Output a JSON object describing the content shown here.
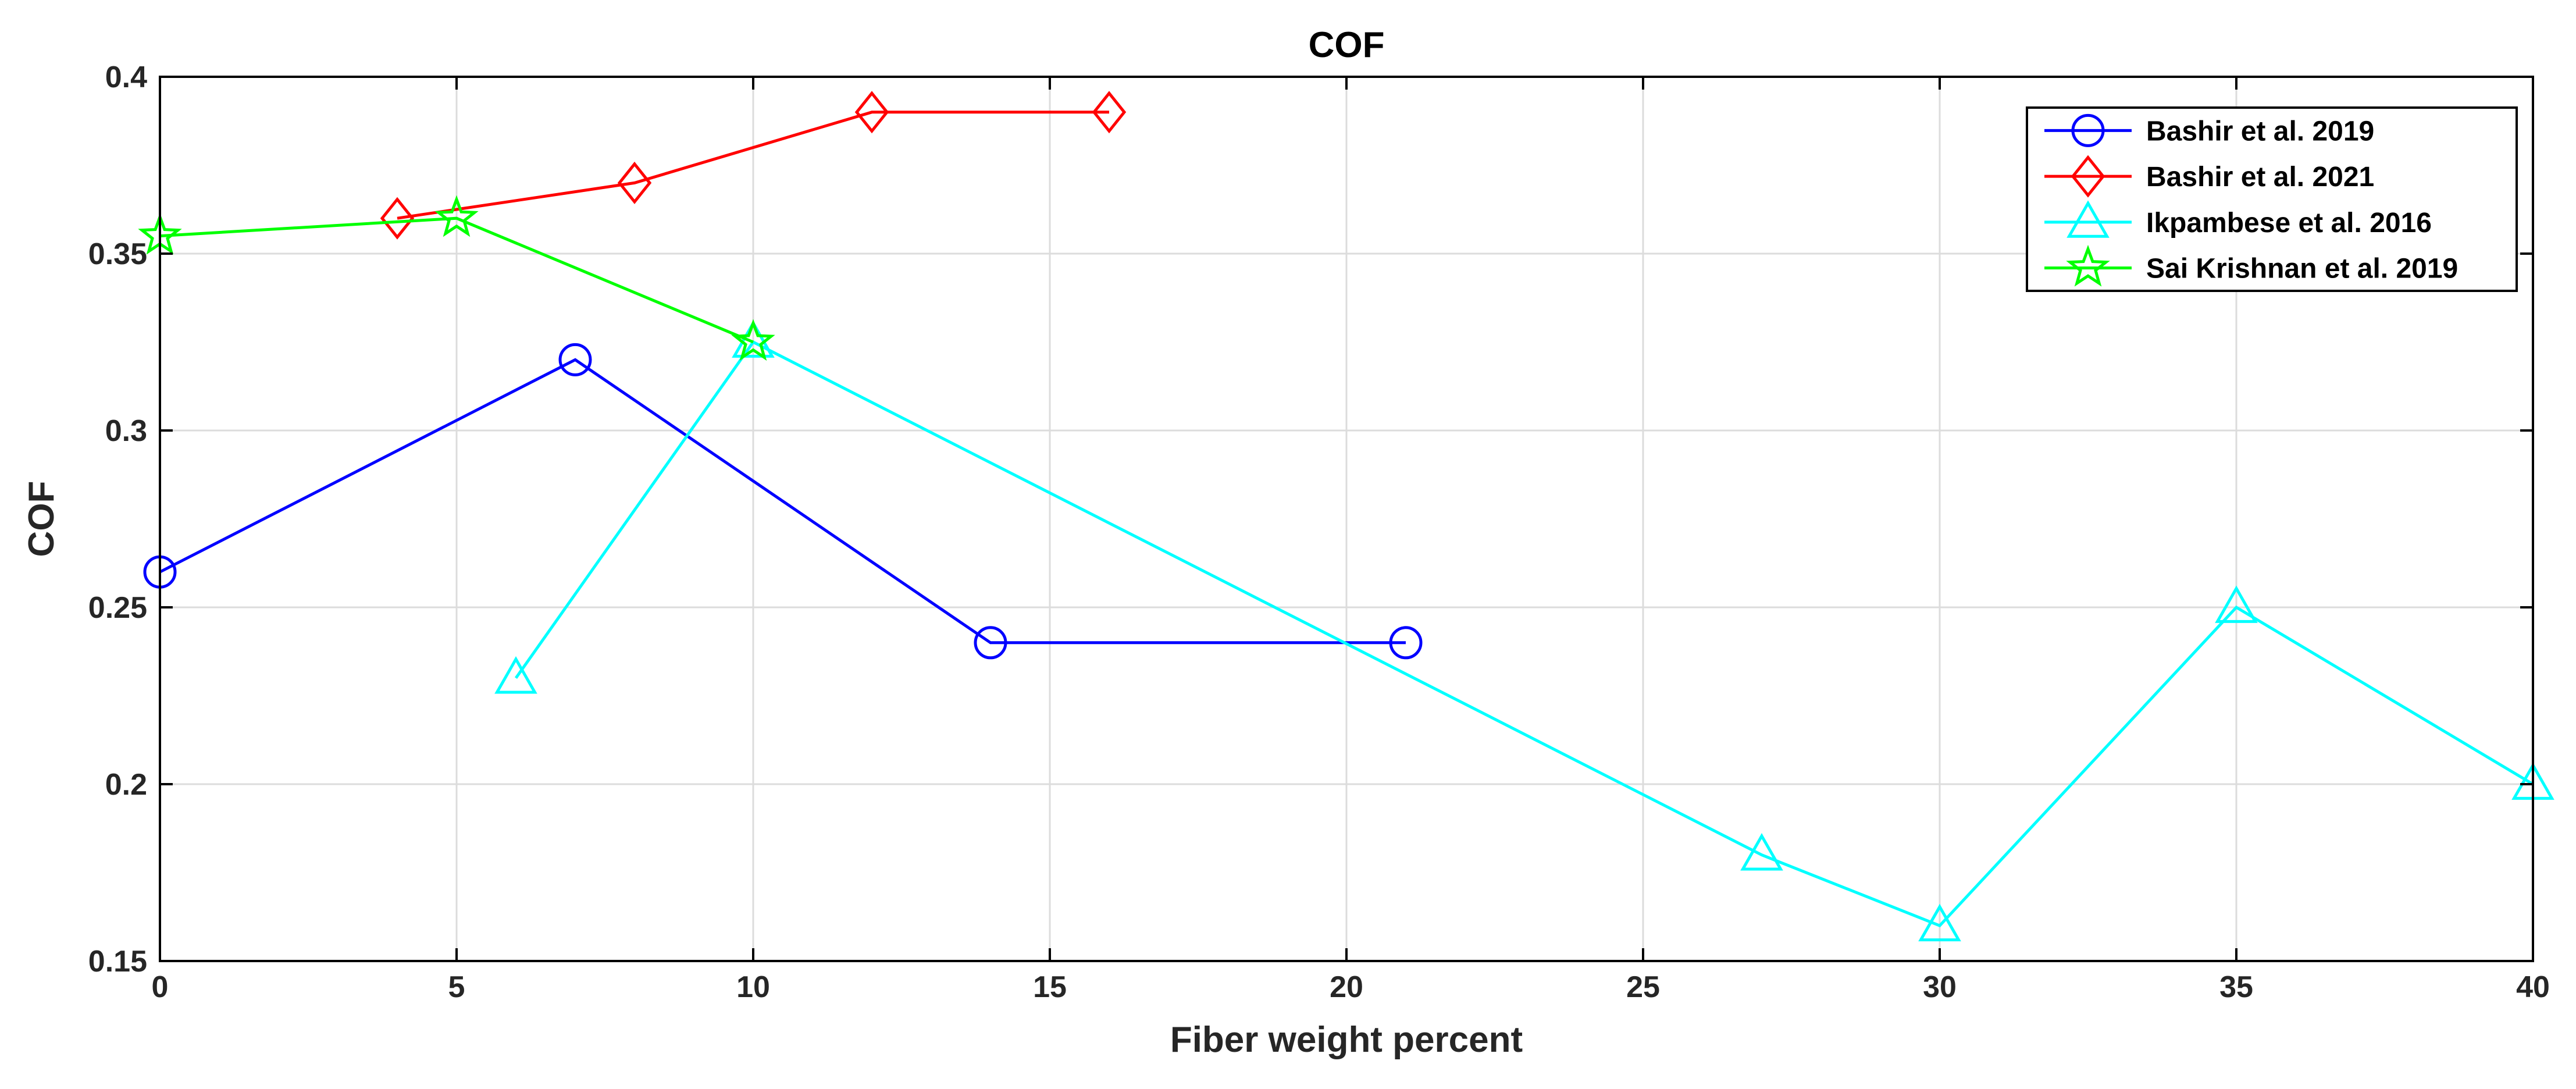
{
  "chart_data": {
    "type": "line",
    "title": "COF",
    "xlabel": "Fiber weight percent",
    "ylabel": "COF",
    "xlim": [
      0,
      40
    ],
    "ylim": [
      0.15,
      0.4
    ],
    "grid": true,
    "legend_position": "top-right",
    "x_ticks": [
      "0",
      "5",
      "10",
      "15",
      "20",
      "25",
      "30",
      "35",
      "40"
    ],
    "y_ticks": [
      "0.15",
      "0.2",
      "0.25",
      "0.3",
      "0.35",
      "0.4"
    ],
    "series": [
      {
        "name": "Bashir et al. 2019",
        "color": "#0000ff",
        "marker": "circle",
        "x": [
          0,
          7,
          14,
          21
        ],
        "y": [
          0.26,
          0.32,
          0.24,
          0.24
        ]
      },
      {
        "name": "Bashir et al. 2021",
        "color": "#ff0000",
        "marker": "diamond",
        "x": [
          4,
          8,
          12,
          16
        ],
        "y": [
          0.36,
          0.37,
          0.39,
          0.39
        ]
      },
      {
        "name": "Ikpambese et al. 2016",
        "color": "#00ffff",
        "marker": "triangle",
        "x": [
          6,
          10,
          27,
          30,
          35,
          40
        ],
        "y": [
          0.23,
          0.325,
          0.18,
          0.16,
          0.25,
          0.2
        ]
      },
      {
        "name": "Sai Krishnan et al. 2019",
        "color": "#00ff00",
        "marker": "star",
        "x": [
          0,
          5,
          10
        ],
        "y": [
          0.355,
          0.36,
          0.325
        ]
      }
    ]
  }
}
